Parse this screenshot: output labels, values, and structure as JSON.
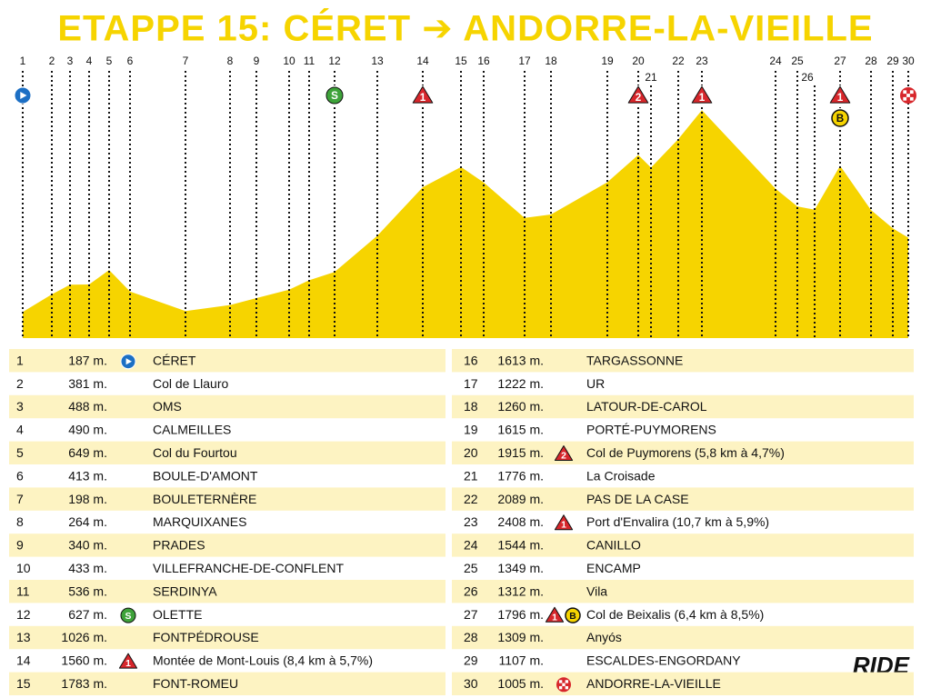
{
  "title": "ETAPPE 15: CÉRET ➔ ANDORRE-LA-VIEILLE",
  "logo": "RIDE",
  "points": [
    {
      "no": 1,
      "altitude": 187,
      "altitude_label": "187 m.",
      "name": "CÉRET",
      "icons": [
        {
          "kind": "start"
        }
      ]
    },
    {
      "no": 2,
      "altitude": 381,
      "altitude_label": "381 m.",
      "name": "Col de Llauro",
      "icons": []
    },
    {
      "no": 3,
      "altitude": 488,
      "altitude_label": "488 m.",
      "name": "OMS",
      "icons": []
    },
    {
      "no": 4,
      "altitude": 490,
      "altitude_label": "490 m.",
      "name": "CALMEILLES",
      "icons": []
    },
    {
      "no": 5,
      "altitude": 649,
      "altitude_label": "649 m.",
      "name": "Col du Fourtou",
      "icons": []
    },
    {
      "no": 6,
      "altitude": 413,
      "altitude_label": "413 m.",
      "name": "BOULE-D'AMONT",
      "icons": []
    },
    {
      "no": 7,
      "altitude": 198,
      "altitude_label": "198 m.",
      "name": "BOULETERNÈRE",
      "icons": []
    },
    {
      "no": 8,
      "altitude": 264,
      "altitude_label": "264 m.",
      "name": "MARQUIXANES",
      "icons": []
    },
    {
      "no": 9,
      "altitude": 340,
      "altitude_label": "340 m.",
      "name": "PRADES",
      "icons": []
    },
    {
      "no": 10,
      "altitude": 433,
      "altitude_label": "433 m.",
      "name": "VILLEFRANCHE-DE-CONFLENT",
      "icons": []
    },
    {
      "no": 11,
      "altitude": 536,
      "altitude_label": "536 m.",
      "name": "SERDINYA",
      "icons": []
    },
    {
      "no": 12,
      "altitude": 627,
      "altitude_label": "627 m.",
      "name": "OLETTE",
      "icons": [
        {
          "kind": "sprint",
          "label": "S"
        }
      ]
    },
    {
      "no": 13,
      "altitude": 1026,
      "altitude_label": "1026 m.",
      "name": "FONTPÉDROUSE",
      "icons": []
    },
    {
      "no": 14,
      "altitude": 1560,
      "altitude_label": "1560 m.",
      "name": "Montée de Mont-Louis (8,4 km à 5,7%)",
      "icons": [
        {
          "kind": "climb",
          "label": "1"
        }
      ]
    },
    {
      "no": 15,
      "altitude": 1783,
      "altitude_label": "1783 m.",
      "name": "FONT-ROMEU",
      "icons": []
    },
    {
      "no": 16,
      "altitude": 1613,
      "altitude_label": "1613 m.",
      "name": "TARGASSONNE",
      "icons": []
    },
    {
      "no": 17,
      "altitude": 1222,
      "altitude_label": "1222 m.",
      "name": "UR",
      "icons": []
    },
    {
      "no": 18,
      "altitude": 1260,
      "altitude_label": "1260 m.",
      "name": "LATOUR-DE-CAROL",
      "icons": []
    },
    {
      "no": 19,
      "altitude": 1615,
      "altitude_label": "1615 m.",
      "name": "PORTÉ-PUYMORENS",
      "icons": []
    },
    {
      "no": 20,
      "altitude": 1915,
      "altitude_label": "1915 m.",
      "name": "Col de Puymorens (5,8 km à 4,7%)",
      "icons": [
        {
          "kind": "climb",
          "label": "2"
        }
      ]
    },
    {
      "no": 21,
      "altitude": 1776,
      "altitude_label": "1776 m.",
      "name": "La Croisade",
      "icons": []
    },
    {
      "no": 22,
      "altitude": 2089,
      "altitude_label": "2089 m.",
      "name": "PAS DE LA CASE",
      "icons": []
    },
    {
      "no": 23,
      "altitude": 2408,
      "altitude_label": "2408 m.",
      "name": "Port d'Envalira (10,7 km à 5,9%)",
      "icons": [
        {
          "kind": "climb",
          "label": "1"
        }
      ]
    },
    {
      "no": 24,
      "altitude": 1544,
      "altitude_label": "1544 m.",
      "name": "CANILLO",
      "icons": []
    },
    {
      "no": 25,
      "altitude": 1349,
      "altitude_label": "1349 m.",
      "name": "ENCAMP",
      "icons": []
    },
    {
      "no": 26,
      "altitude": 1312,
      "altitude_label": "1312 m.",
      "name": "Vila",
      "icons": []
    },
    {
      "no": 27,
      "altitude": 1796,
      "altitude_label": "1796 m.",
      "name": "Col de Beixalis (6,4 km à 8,5%)",
      "icons": [
        {
          "kind": "climb",
          "label": "1"
        },
        {
          "kind": "bonus",
          "label": "B"
        }
      ]
    },
    {
      "no": 28,
      "altitude": 1309,
      "altitude_label": "1309 m.",
      "name": "Anyós",
      "icons": []
    },
    {
      "no": 29,
      "altitude": 1107,
      "altitude_label": "1107 m.",
      "name": "ESCALDES-ENGORDANY",
      "icons": []
    },
    {
      "no": 30,
      "altitude": 1005,
      "altitude_label": "1005 m.",
      "name": "ANDORRE-LA-VIEILLE",
      "icons": [
        {
          "kind": "finish"
        }
      ]
    }
  ]
}
